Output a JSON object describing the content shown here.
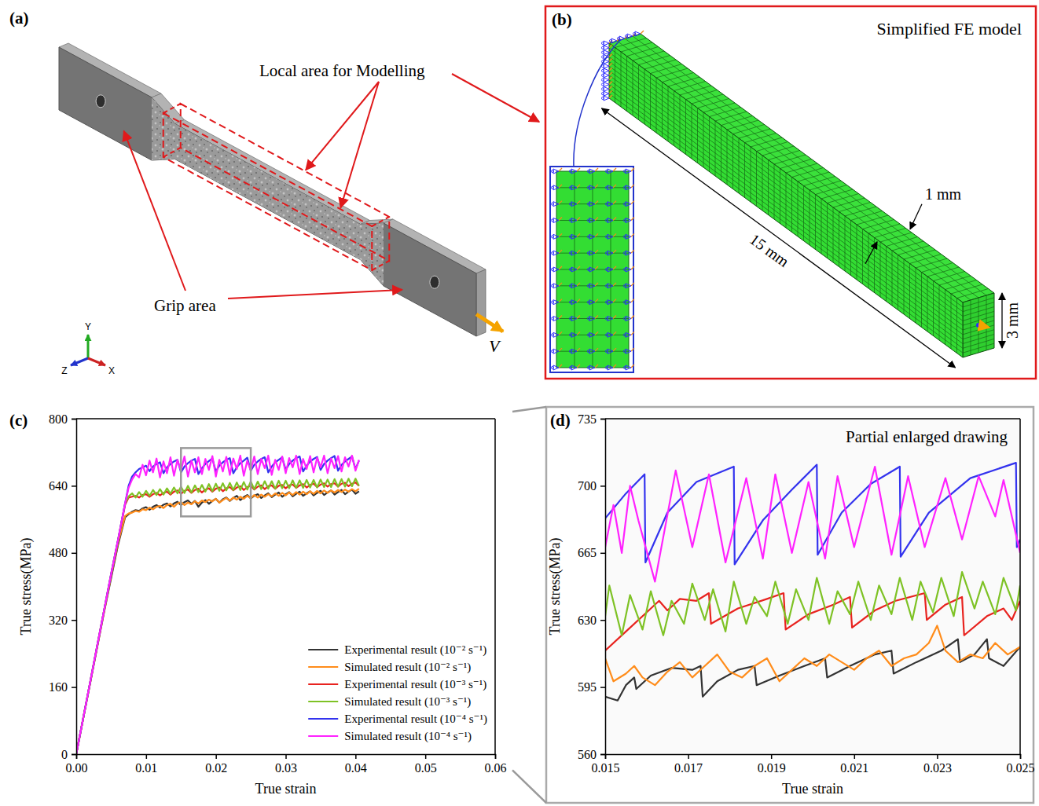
{
  "figure": {
    "panel_a": {
      "letter": "(a)",
      "callout_model": "Local area for Modelling",
      "callout_grip": "Grip area",
      "velocity": "V",
      "axes": {
        "y": "Y",
        "z": "Z",
        "x": "X"
      }
    },
    "panel_b": {
      "letter": "(b)",
      "title": "Simplified FE model",
      "length": "15 mm",
      "depth": "1 mm",
      "height": "3 mm"
    },
    "panel_c": {
      "letter": "(c)"
    },
    "panel_d": {
      "letter": "(d)"
    }
  },
  "chart_data": [
    {
      "type": "line",
      "x_label": "True strain",
      "y_label": "True stress(MPa)",
      "xlim": [
        0,
        0.06
      ],
      "xticks": [
        {
          "value": 0,
          "label": "0.00"
        },
        0.01,
        0.02,
        0.03,
        0.04,
        0.05,
        0.06
      ],
      "ylim": [
        0,
        800
      ],
      "yticks": [
        0,
        160,
        320,
        480,
        640,
        800
      ],
      "legend": "lower right",
      "zoom_box": {
        "x": [
          0.015,
          0.025
        ],
        "y": [
          567,
          730
        ]
      },
      "x": [
        0,
        0.001,
        0.002,
        0.003,
        0.004,
        0.005,
        0.006,
        0.007,
        0.0075,
        0.008,
        0.0085,
        0.009,
        0.0095,
        0.01,
        0.0105,
        0.011,
        0.0115,
        0.012,
        0.0125,
        0.013,
        0.0135,
        0.014,
        0.0145,
        0.015,
        0.0155,
        0.016,
        0.0165,
        0.017,
        0.0175,
        0.018,
        0.0185,
        0.019,
        0.0195,
        0.02,
        0.0205,
        0.021,
        0.0215,
        0.022,
        0.0225,
        0.023,
        0.0235,
        0.024,
        0.0245,
        0.025,
        0.0255,
        0.026,
        0.0265,
        0.027,
        0.0275,
        0.028,
        0.0285,
        0.029,
        0.0295,
        0.03,
        0.0305,
        0.031,
        0.0315,
        0.032,
        0.0325,
        0.033,
        0.0335,
        0.034,
        0.0345,
        0.035,
        0.0355,
        0.036,
        0.0365,
        0.037,
        0.0375,
        0.038,
        0.0385,
        0.039,
        0.0395,
        0.04,
        0.0405
      ],
      "series": [
        {
          "name": "Experimental result (10⁻² s⁻¹)",
          "color": "#333333",
          "values": [
            0,
            85,
            170,
            255,
            340,
            420,
            500,
            565,
            572,
            578,
            582,
            580,
            586,
            589,
            583,
            590,
            594,
            588,
            595,
            598,
            591,
            598,
            602,
            594,
            601,
            605,
            597,
            604,
            590,
            600,
            606,
            597,
            604,
            609,
            600,
            608,
            612,
            604,
            611,
            616,
            606,
            613,
            618,
            610,
            616,
            620,
            611,
            617,
            622,
            613,
            619,
            624,
            614,
            620,
            625,
            615,
            621,
            626,
            616,
            622,
            627,
            617,
            623,
            628,
            618,
            624,
            629,
            619,
            625,
            630,
            620,
            626,
            631,
            621,
            627
          ]
        },
        {
          "name": "Simulated result (10⁻² s⁻¹)",
          "color": "#ff8c1a",
          "values": [
            0,
            85,
            170,
            255,
            340,
            425,
            505,
            568,
            574,
            576,
            580,
            578,
            584,
            582,
            588,
            584,
            590,
            592,
            587,
            594,
            597,
            590,
            598,
            601,
            594,
            600,
            596,
            603,
            598,
            605,
            601,
            607,
            603,
            609,
            600,
            606,
            611,
            605,
            612,
            607,
            614,
            609,
            616,
            611,
            618,
            612,
            619,
            614,
            620,
            615,
            622,
            616,
            623,
            617,
            624,
            618,
            625,
            619,
            626,
            620,
            627,
            621,
            628,
            622,
            629,
            623,
            629,
            624,
            630,
            625,
            631,
            626,
            632,
            627,
            633
          ]
        },
        {
          "name": "Experimental result (10⁻³ s⁻¹)",
          "color": "#e8231f",
          "values": [
            0,
            86,
            172,
            258,
            344,
            428,
            510,
            595,
            612,
            614,
            616,
            612,
            618,
            620,
            614,
            620,
            623,
            617,
            623,
            626,
            619,
            626,
            629,
            621,
            628,
            631,
            623,
            630,
            633,
            624,
            631,
            634,
            626,
            633,
            636,
            627,
            634,
            637,
            629,
            636,
            639,
            630,
            637,
            640,
            631,
            638,
            641,
            632,
            639,
            641,
            633,
            640,
            642,
            634,
            641,
            643,
            635,
            641,
            644,
            636,
            642,
            645,
            637,
            643,
            646,
            638,
            644,
            646,
            638,
            645,
            647,
            639,
            645,
            648,
            640
          ]
        },
        {
          "name": "Simulated result (10⁻³ s⁻¹)",
          "color": "#7ec225",
          "values": [
            0,
            86,
            172,
            258,
            344,
            430,
            512,
            598,
            615,
            622,
            612,
            625,
            614,
            628,
            616,
            630,
            618,
            632,
            619,
            634,
            621,
            636,
            622,
            638,
            623,
            640,
            624,
            641,
            625,
            642,
            626,
            644,
            627,
            645,
            628,
            646,
            629,
            647,
            630,
            648,
            630,
            649,
            631,
            650,
            632,
            650,
            632,
            651,
            633,
            651,
            633,
            652,
            634,
            652,
            634,
            653,
            635,
            653,
            635,
            654,
            636,
            654,
            636,
            655,
            637,
            655,
            637,
            656,
            638,
            656,
            638,
            657,
            639,
            657,
            640
          ]
        },
        {
          "name": "Experimental result (10⁻⁴ s⁻¹)",
          "color": "#3333ee",
          "values": [
            0,
            86,
            172,
            258,
            344,
            430,
            512,
            598,
            640,
            662,
            672,
            680,
            684,
            688,
            675,
            686,
            692,
            696,
            670,
            684,
            692,
            698,
            702,
            672,
            686,
            694,
            700,
            704,
            668,
            682,
            692,
            699,
            705,
            674,
            688,
            696,
            702,
            706,
            670,
            684,
            694,
            700,
            707,
            676,
            690,
            698,
            704,
            708,
            672,
            686,
            696,
            702,
            708,
            678,
            692,
            700,
            706,
            710,
            674,
            688,
            698,
            704,
            709,
            678,
            692,
            700,
            706,
            711,
            676,
            690,
            698,
            704,
            710,
            680,
            700
          ]
        },
        {
          "name": "Simulated result (10⁻⁴ s⁻¹)",
          "color": "#ff22ff",
          "values": [
            0,
            86,
            172,
            258,
            344,
            430,
            512,
            598,
            635,
            655,
            668,
            660,
            690,
            665,
            700,
            672,
            705,
            660,
            698,
            670,
            708,
            664,
            702,
            676,
            710,
            662,
            700,
            672,
            708,
            668,
            704,
            678,
            711,
            662,
            702,
            674,
            709,
            666,
            705,
            680,
            712,
            664,
            700,
            676,
            710,
            668,
            704,
            682,
            712,
            666,
            702,
            678,
            710,
            670,
            706,
            684,
            712,
            668,
            704,
            680,
            711,
            672,
            707,
            684,
            712,
            670,
            705,
            682,
            711,
            674,
            708,
            686,
            712,
            676,
            702
          ]
        }
      ]
    },
    {
      "type": "line",
      "title": "Partial enlarged drawing",
      "x_label": "True strain",
      "y_label": "True stress(MPa)",
      "xlim": [
        0.015,
        0.025
      ],
      "xticks": [
        0.015,
        0.017,
        0.019,
        0.021,
        0.023,
        0.025
      ],
      "ylim": [
        560,
        735
      ],
      "yticks": [
        560,
        595,
        630,
        665,
        700,
        735
      ],
      "series": [
        {
          "color": "#333333",
          "x": [
            0.015,
            0.0153,
            0.0155,
            0.0157,
            0.01575,
            0.0161,
            0.0166,
            0.0171,
            0.0173,
            0.01735,
            0.0177,
            0.0182,
            0.0186,
            0.01865,
            0.0192,
            0.0198,
            0.0203,
            0.02035,
            0.0209,
            0.0215,
            0.0219,
            0.02195,
            0.0225,
            0.0231,
            0.0235,
            0.02355,
            0.0239,
            0.0242,
            0.02425,
            0.0246,
            0.025
          ],
          "values": [
            590,
            588,
            596,
            600,
            594,
            601,
            605,
            604,
            606,
            590,
            598,
            604,
            606,
            596,
            601,
            606,
            610,
            600,
            606,
            612,
            614,
            602,
            608,
            614,
            620,
            608,
            612,
            620,
            610,
            606,
            616
          ]
        },
        {
          "color": "#ff8c1a",
          "x": [
            0.015,
            0.0152,
            0.0155,
            0.0157,
            0.0159,
            0.0162,
            0.0165,
            0.0168,
            0.0171,
            0.0174,
            0.0177,
            0.018,
            0.0183,
            0.0186,
            0.0189,
            0.0192,
            0.0195,
            0.0198,
            0.0201,
            0.0204,
            0.0207,
            0.021,
            0.0213,
            0.0216,
            0.0219,
            0.0222,
            0.0225,
            0.0228,
            0.023,
            0.0232,
            0.0235,
            0.0238,
            0.0241,
            0.0244,
            0.0247,
            0.025
          ],
          "values": [
            610,
            598,
            602,
            606,
            600,
            596,
            603,
            608,
            600,
            606,
            612,
            603,
            600,
            606,
            610,
            598,
            604,
            610,
            606,
            612,
            608,
            604,
            610,
            614,
            606,
            610,
            612,
            618,
            627,
            614,
            608,
            612,
            610,
            618,
            612,
            616
          ]
        },
        {
          "color": "#e8231f",
          "x": [
            0.015,
            0.0155,
            0.016,
            0.0163,
            0.0165,
            0.0168,
            0.0172,
            0.0175,
            0.01755,
            0.0182,
            0.0189,
            0.0193,
            0.01935,
            0.0199,
            0.0205,
            0.0209,
            0.02095,
            0.0215,
            0.022,
            0.0227,
            0.02275,
            0.0232,
            0.0236,
            0.02365,
            0.0242,
            0.0246,
            0.0248,
            0.025
          ],
          "values": [
            614,
            624,
            634,
            640,
            635,
            641,
            640,
            644,
            628,
            636,
            641,
            644,
            625,
            633,
            638,
            642,
            626,
            635,
            640,
            644,
            630,
            638,
            642,
            622,
            632,
            636,
            630,
            640
          ]
        },
        {
          "color": "#7ec225",
          "x": [
            0.015,
            0.0151,
            0.0154,
            0.0156,
            0.0159,
            0.0161,
            0.0164,
            0.0166,
            0.0169,
            0.0171,
            0.0174,
            0.0176,
            0.0179,
            0.0181,
            0.0184,
            0.0186,
            0.0189,
            0.0191,
            0.0194,
            0.0196,
            0.0199,
            0.0201,
            0.0204,
            0.0206,
            0.0209,
            0.0211,
            0.0214,
            0.0216,
            0.0219,
            0.0221,
            0.0224,
            0.0226,
            0.0229,
            0.0231,
            0.0234,
            0.0236,
            0.0239,
            0.0241,
            0.0244,
            0.0246,
            0.0249,
            0.025
          ],
          "values": [
            632,
            648,
            622,
            643,
            625,
            645,
            622,
            640,
            628,
            649,
            630,
            646,
            624,
            650,
            628,
            642,
            632,
            650,
            628,
            646,
            630,
            652,
            628,
            645,
            633,
            650,
            630,
            648,
            633,
            652,
            630,
            650,
            634,
            652,
            632,
            655,
            636,
            650,
            633,
            652,
            635,
            648
          ]
        },
        {
          "color": "#3333ee",
          "x": [
            0.015,
            0.0155,
            0.01595,
            0.01597,
            0.0165,
            0.0172,
            0.0181,
            0.01812,
            0.0188,
            0.0195,
            0.0201,
            0.02012,
            0.0207,
            0.0214,
            0.0221,
            0.02212,
            0.0228,
            0.0238,
            0.0249,
            0.02492,
            0.025
          ],
          "values": [
            683,
            696,
            706,
            660,
            686,
            702,
            710,
            659,
            682,
            698,
            711,
            664,
            686,
            701,
            710,
            663,
            686,
            704,
            712,
            668,
            672
          ]
        },
        {
          "color": "#ff22ff",
          "x": [
            0.015,
            0.0152,
            0.0154,
            0.0156,
            0.0158,
            0.0162,
            0.0167,
            0.0171,
            0.0175,
            0.0179,
            0.0184,
            0.0188,
            0.0191,
            0.0195,
            0.0199,
            0.0203,
            0.0206,
            0.021,
            0.0215,
            0.0219,
            0.0223,
            0.0227,
            0.0232,
            0.0236,
            0.024,
            0.0244,
            0.0246,
            0.025
          ],
          "values": [
            668,
            690,
            665,
            700,
            682,
            650,
            708,
            668,
            706,
            660,
            704,
            662,
            706,
            665,
            702,
            662,
            705,
            668,
            710,
            664,
            705,
            668,
            704,
            672,
            705,
            684,
            703,
            665
          ]
        }
      ]
    }
  ]
}
